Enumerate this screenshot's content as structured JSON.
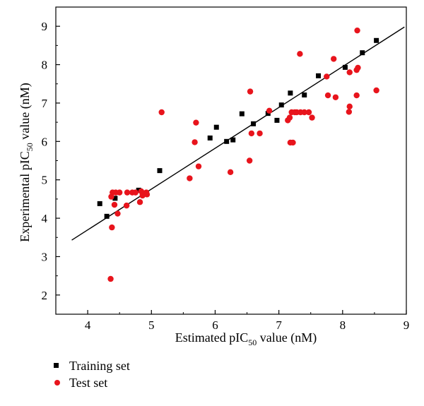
{
  "chart_data": {
    "type": "scatter",
    "xlabel": {
      "prefix": "Estimated pIC",
      "sub": "50",
      "suffix": " value (nM)"
    },
    "ylabel": {
      "prefix": "Experimental pIC",
      "sub": "50",
      "suffix": " value (nM)"
    },
    "xlim": [
      3.5,
      9
    ],
    "ylim": [
      1.5,
      9.5
    ],
    "x_ticks": [
      4,
      5,
      6,
      7,
      8,
      9
    ],
    "y_ticks": [
      2,
      3,
      4,
      5,
      6,
      7,
      8,
      9
    ],
    "grid": false,
    "legend_position": "bottom-left",
    "series": [
      {
        "name": "Training set",
        "marker": "square",
        "color": "#000000",
        "points": [
          [
            4.19,
            4.38
          ],
          [
            4.3,
            4.05
          ],
          [
            4.43,
            4.52
          ],
          [
            4.8,
            4.73
          ],
          [
            5.13,
            5.24
          ],
          [
            5.92,
            6.09
          ],
          [
            6.02,
            6.37
          ],
          [
            6.18,
            6.0
          ],
          [
            6.28,
            6.04
          ],
          [
            6.42,
            6.72
          ],
          [
            6.6,
            6.46
          ],
          [
            6.83,
            6.73
          ],
          [
            6.97,
            6.55
          ],
          [
            7.04,
            6.95
          ],
          [
            7.18,
            7.26
          ],
          [
            7.4,
            7.21
          ],
          [
            7.62,
            7.71
          ],
          [
            8.04,
            7.93
          ],
          [
            8.31,
            8.31
          ],
          [
            8.53,
            8.63
          ]
        ]
      },
      {
        "name": "Test set",
        "marker": "circle",
        "color": "#e8141c",
        "points": [
          [
            4.36,
            2.42
          ],
          [
            4.38,
            3.76
          ],
          [
            4.37,
            4.56
          ],
          [
            4.39,
            4.67
          ],
          [
            4.42,
            4.35
          ],
          [
            4.44,
            4.67
          ],
          [
            4.47,
            4.12
          ],
          [
            4.5,
            4.67
          ],
          [
            4.61,
            4.33
          ],
          [
            4.62,
            4.67
          ],
          [
            4.7,
            4.67
          ],
          [
            4.75,
            4.67
          ],
          [
            4.82,
            4.42
          ],
          [
            4.84,
            4.7
          ],
          [
            4.86,
            4.59
          ],
          [
            4.92,
            4.67
          ],
          [
            4.93,
            4.62
          ],
          [
            5.16,
            6.76
          ],
          [
            5.6,
            5.04
          ],
          [
            5.68,
            5.98
          ],
          [
            5.7,
            6.49
          ],
          [
            5.74,
            5.35
          ],
          [
            6.24,
            5.2
          ],
          [
            6.54,
            5.5
          ],
          [
            6.55,
            7.3
          ],
          [
            6.57,
            6.21
          ],
          [
            6.7,
            6.21
          ],
          [
            6.85,
            6.8
          ],
          [
            7.14,
            6.55
          ],
          [
            7.17,
            6.62
          ],
          [
            7.18,
            5.97
          ],
          [
            7.2,
            6.76
          ],
          [
            7.22,
            5.97
          ],
          [
            7.25,
            6.76
          ],
          [
            7.28,
            6.76
          ],
          [
            7.33,
            8.28
          ],
          [
            7.34,
            6.76
          ],
          [
            7.4,
            6.76
          ],
          [
            7.47,
            6.76
          ],
          [
            7.52,
            6.62
          ],
          [
            7.75,
            7.69
          ],
          [
            7.77,
            7.2
          ],
          [
            7.86,
            8.15
          ],
          [
            7.89,
            7.15
          ],
          [
            8.1,
            6.77
          ],
          [
            8.11,
            7.8
          ],
          [
            8.11,
            6.91
          ],
          [
            8.22,
            7.2
          ],
          [
            8.22,
            7.86
          ],
          [
            8.23,
            8.89
          ],
          [
            8.24,
            7.92
          ],
          [
            8.53,
            7.33
          ]
        ]
      }
    ],
    "fit_line": {
      "x": [
        3.75,
        8.97
      ],
      "y": [
        3.43,
        8.98
      ]
    }
  }
}
